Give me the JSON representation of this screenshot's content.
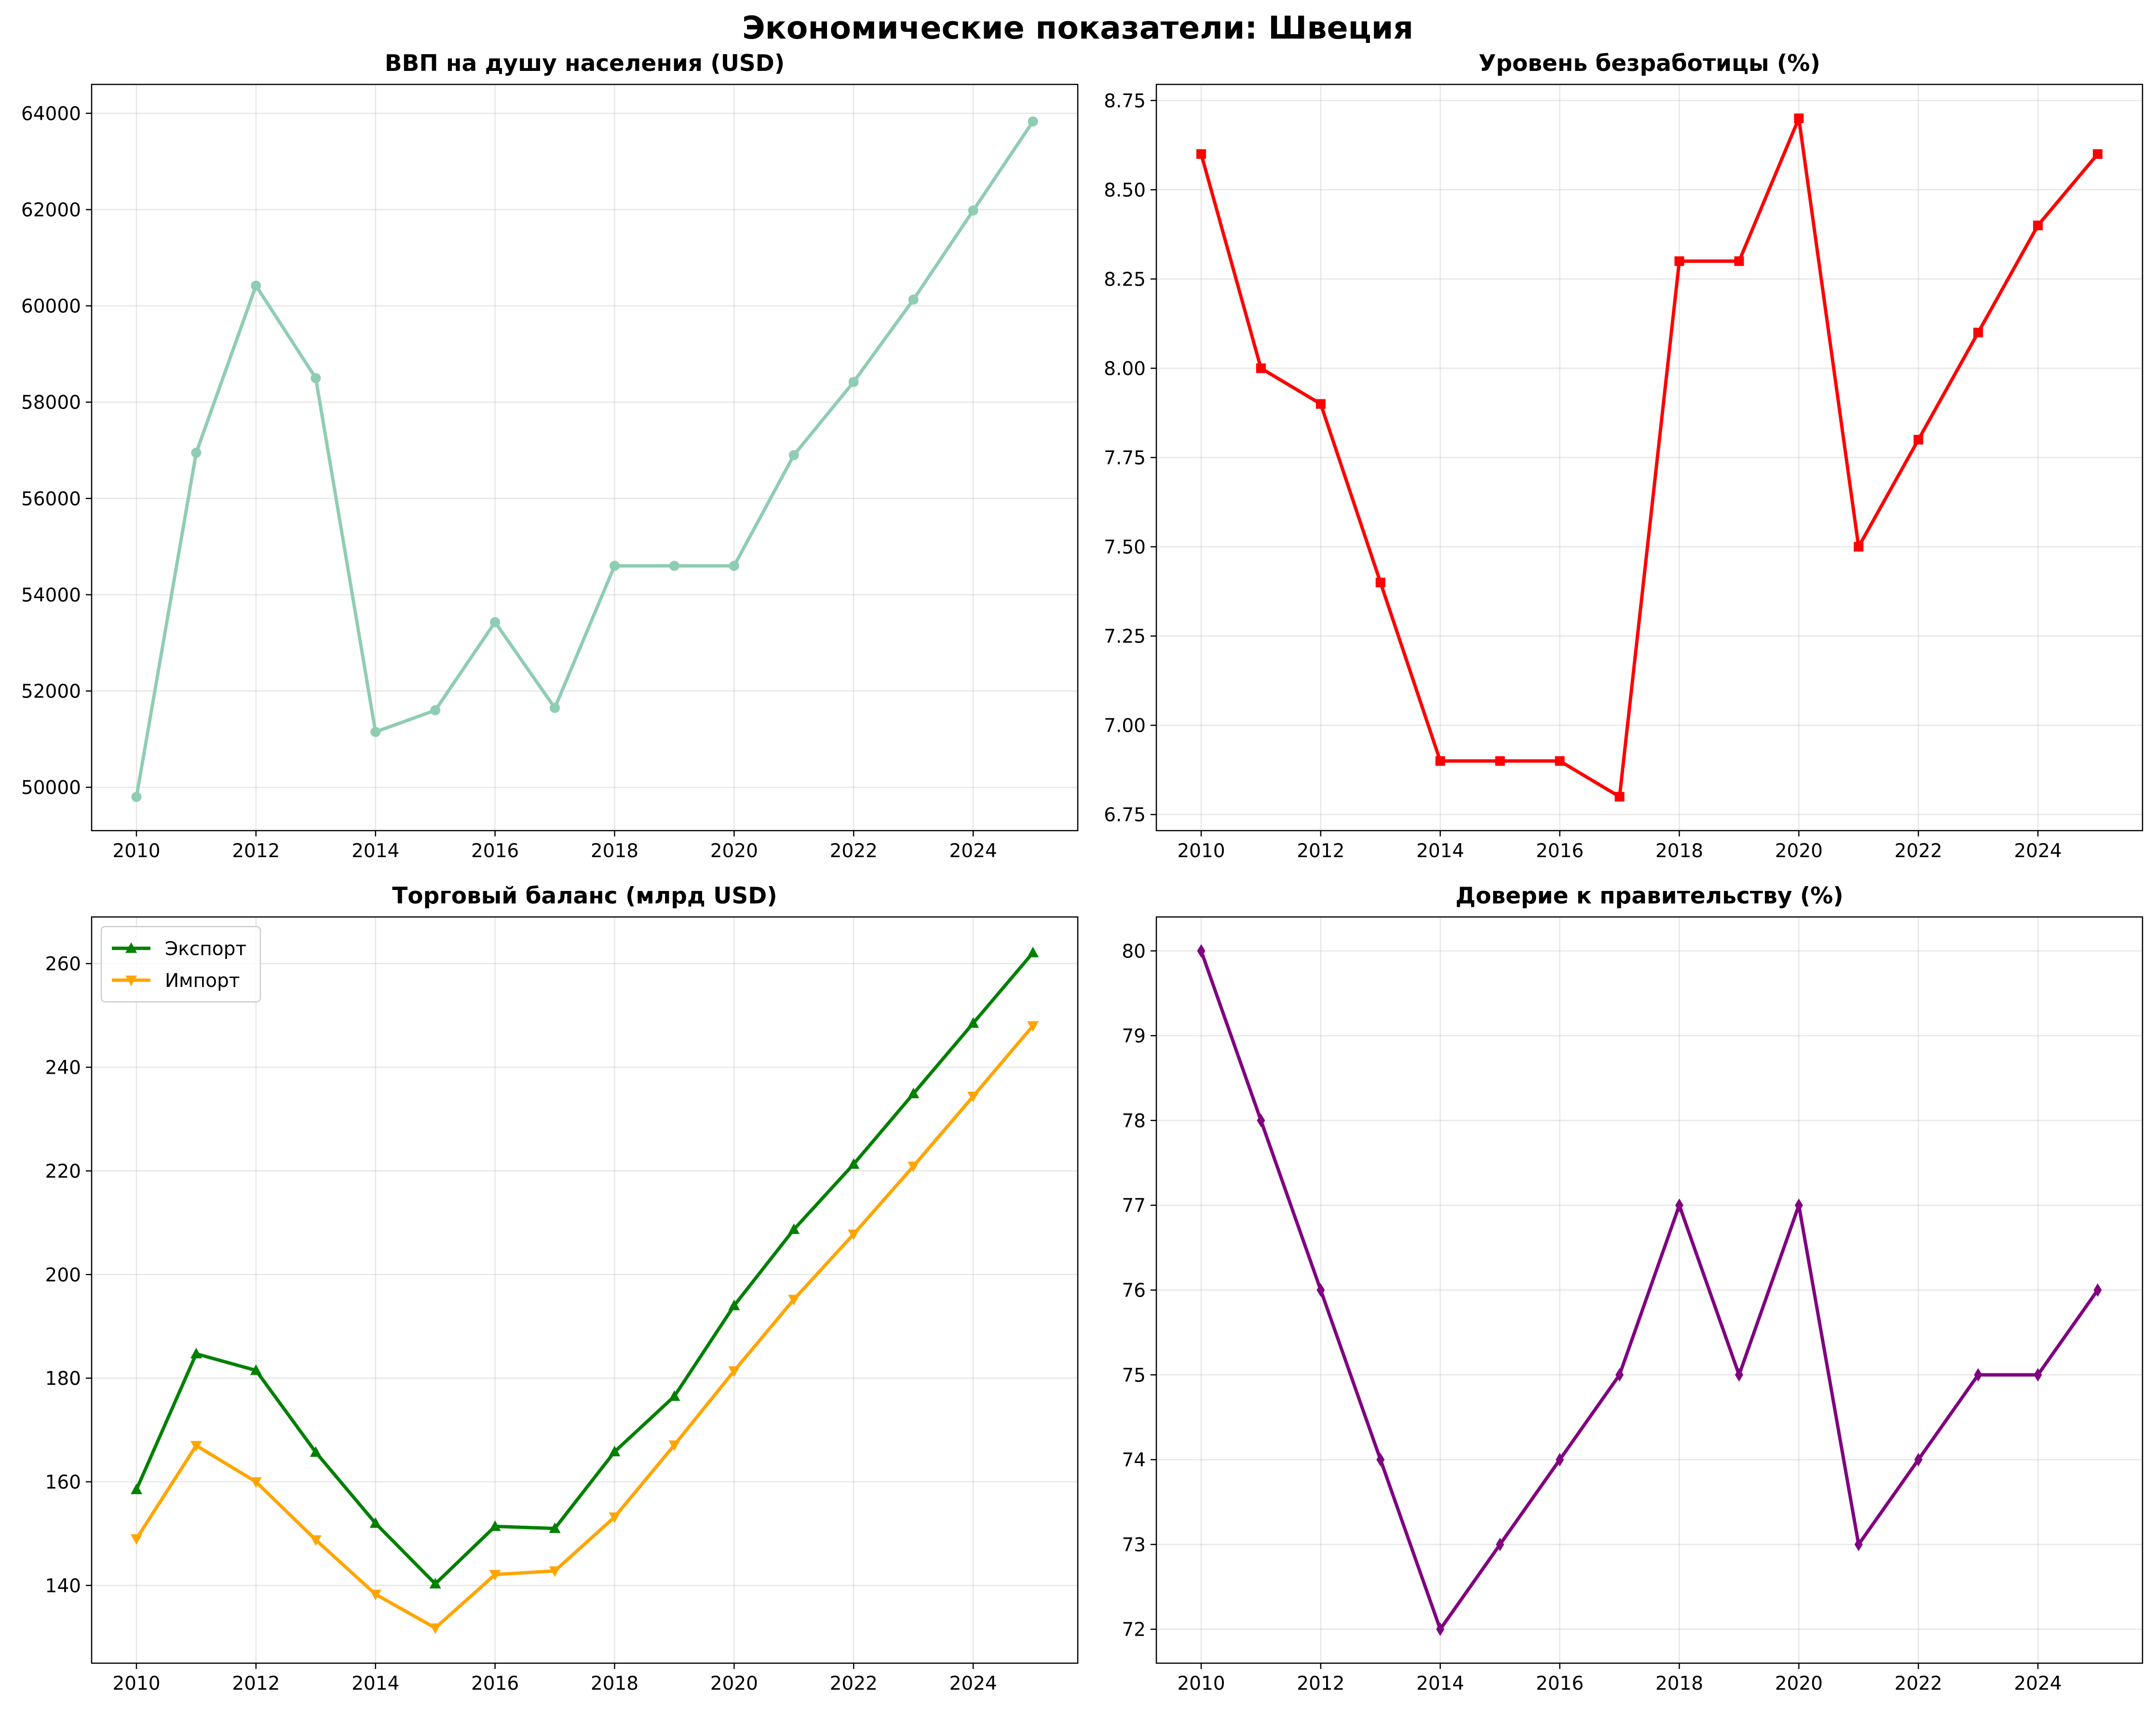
{
  "figure": {
    "title": "Экономические показатели: Швеция"
  },
  "chart_data": [
    {
      "id": "gdp",
      "type": "line",
      "title": "ВВП на душу населения (USD)",
      "xlabel": "",
      "ylabel": "",
      "x": [
        2010,
        2011,
        2012,
        2013,
        2014,
        2015,
        2016,
        2017,
        2018,
        2019,
        2020,
        2021,
        2022,
        2023,
        2024,
        2025
      ],
      "xlim": [
        2009.25,
        2025.75
      ],
      "ylim": [
        49100,
        64600
      ],
      "xticks": [
        2010,
        2012,
        2014,
        2016,
        2018,
        2020,
        2022,
        2024
      ],
      "yticks": [
        50000,
        52000,
        54000,
        56000,
        58000,
        60000,
        62000,
        64000
      ],
      "ytick_decimals": 0,
      "grid": true,
      "legend": null,
      "series": [
        {
          "color": "#8fcdb2",
          "marker": "circle",
          "values": [
            49800,
            56950,
            60420,
            58500,
            51150,
            51600,
            53430,
            51650,
            54600,
            54600,
            54600,
            56900,
            58420,
            60130,
            61980,
            63830
          ]
        }
      ]
    },
    {
      "id": "unemployment",
      "type": "line",
      "title": "Уровень безработицы (%)",
      "xlabel": "",
      "ylabel": "",
      "x": [
        2010,
        2011,
        2012,
        2013,
        2014,
        2015,
        2016,
        2017,
        2018,
        2019,
        2020,
        2021,
        2022,
        2023,
        2024,
        2025
      ],
      "xlim": [
        2009.25,
        2025.75
      ],
      "ylim": [
        6.705,
        8.795
      ],
      "xticks": [
        2010,
        2012,
        2014,
        2016,
        2018,
        2020,
        2022,
        2024
      ],
      "yticks": [
        6.75,
        7.0,
        7.25,
        7.5,
        7.75,
        8.0,
        8.25,
        8.5,
        8.75
      ],
      "ytick_decimals": 2,
      "grid": true,
      "legend": null,
      "series": [
        {
          "color": "#ff0000",
          "marker": "square",
          "values": [
            8.6,
            8.0,
            7.9,
            7.4,
            6.9,
            6.9,
            6.9,
            6.8,
            8.3,
            8.3,
            8.7,
            7.5,
            7.8,
            8.1,
            8.4,
            8.6
          ]
        }
      ]
    },
    {
      "id": "trade",
      "type": "line",
      "title": "Торговый баланс (млрд USD)",
      "xlabel": "",
      "ylabel": "",
      "x": [
        2010,
        2011,
        2012,
        2013,
        2014,
        2015,
        2016,
        2017,
        2018,
        2019,
        2020,
        2021,
        2022,
        2023,
        2024,
        2025
      ],
      "xlim": [
        2009.25,
        2025.75
      ],
      "ylim": [
        125,
        269
      ],
      "xticks": [
        2010,
        2012,
        2014,
        2016,
        2018,
        2020,
        2022,
        2024
      ],
      "yticks": [
        140,
        160,
        180,
        200,
        220,
        240,
        260
      ],
      "ytick_decimals": 0,
      "grid": true,
      "legend": "top-left",
      "series": [
        {
          "name": "Экспорт",
          "color": "#008000",
          "marker": "triangle-up",
          "values": [
            158.5,
            184.7,
            181.5,
            165.7,
            152.0,
            140.3,
            151.4,
            151.0,
            165.8,
            176.5,
            194.0,
            208.7,
            221.3,
            234.9,
            248.5,
            262.1
          ]
        },
        {
          "name": "Импорт",
          "color": "#ffa500",
          "marker": "triangle-down",
          "values": [
            149.0,
            167.0,
            160.0,
            148.8,
            138.3,
            131.8,
            142.1,
            142.8,
            153.2,
            167.1,
            181.4,
            195.2,
            207.8,
            220.9,
            234.4,
            248.0
          ]
        }
      ]
    },
    {
      "id": "trust",
      "type": "line",
      "title": "Доверие к правительству (%)",
      "xlabel": "",
      "ylabel": "",
      "x": [
        2010,
        2011,
        2012,
        2013,
        2014,
        2015,
        2016,
        2017,
        2018,
        2019,
        2020,
        2021,
        2022,
        2023,
        2024,
        2025
      ],
      "xlim": [
        2009.25,
        2025.75
      ],
      "ylim": [
        71.6,
        80.4
      ],
      "xticks": [
        2010,
        2012,
        2014,
        2016,
        2018,
        2020,
        2022,
        2024
      ],
      "yticks": [
        72,
        73,
        74,
        75,
        76,
        77,
        78,
        79,
        80
      ],
      "ytick_decimals": 0,
      "grid": true,
      "legend": null,
      "series": [
        {
          "color": "#800080",
          "marker": "diamond",
          "values": [
            80,
            78,
            76,
            74,
            72,
            73,
            74,
            75,
            77,
            75,
            77,
            73,
            74,
            75,
            75,
            76
          ]
        }
      ]
    }
  ]
}
